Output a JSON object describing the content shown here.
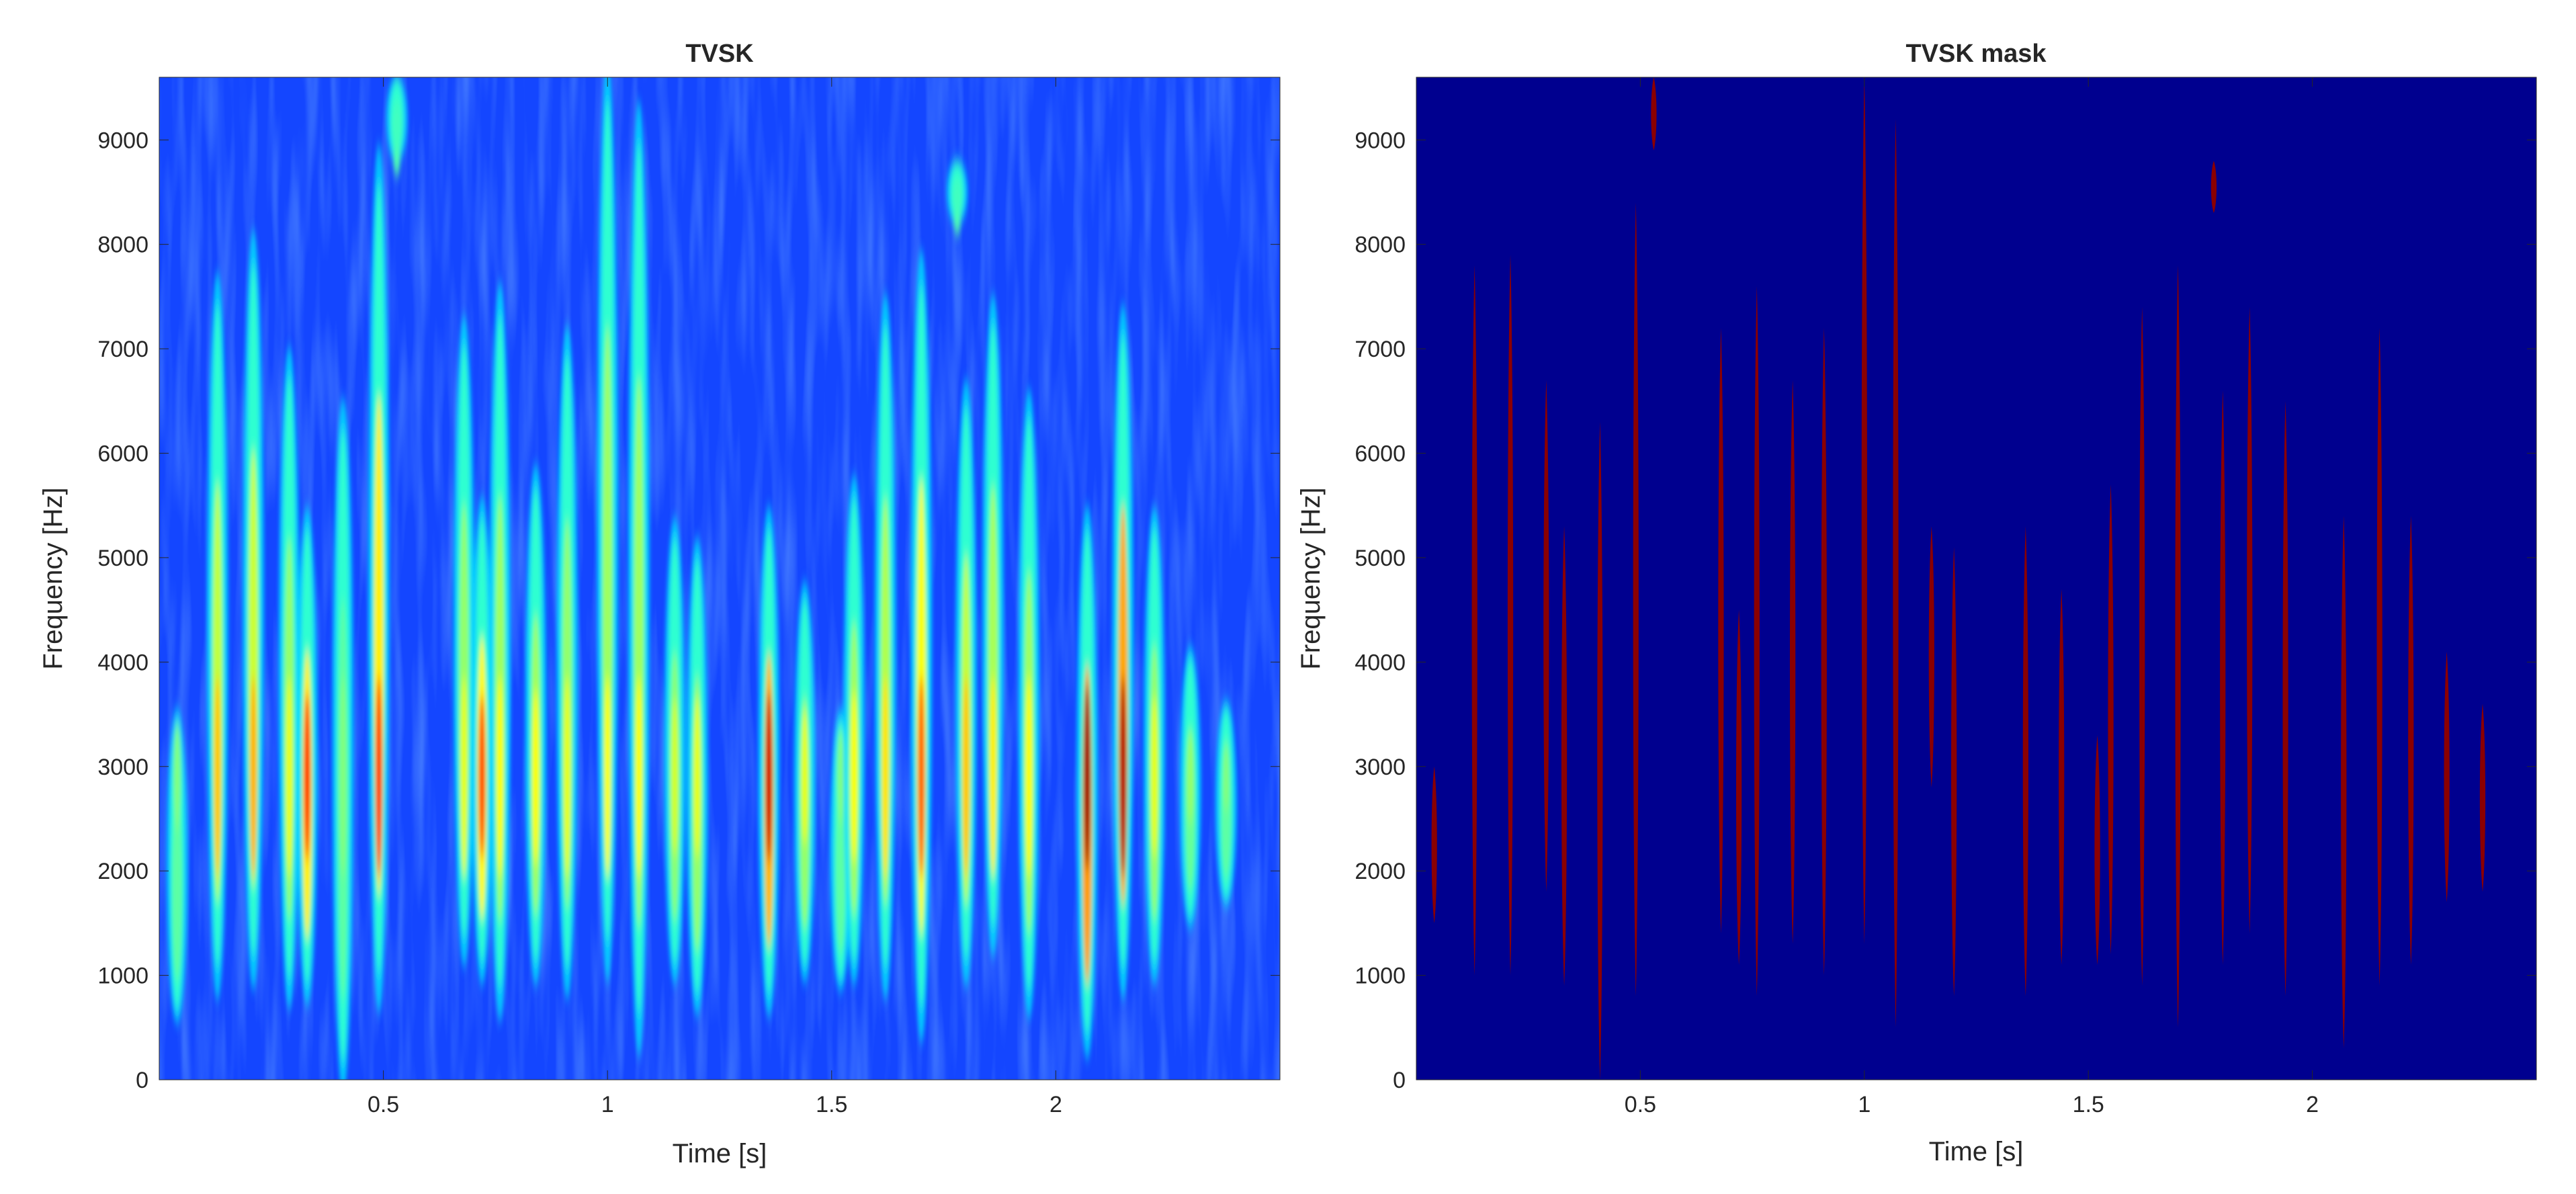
{
  "chart_data": [
    {
      "type": "heatmap",
      "title": "TVSK",
      "xlabel": "Time [s]",
      "ylabel": "Frequency [Hz]",
      "xlim": [
        0.0,
        2.5
      ],
      "ylim": [
        0,
        9600
      ],
      "xticks": [
        0.5,
        1,
        1.5,
        2
      ],
      "xtick_labels": [
        "0.5",
        "1",
        "1.5",
        "2"
      ],
      "yticks": [
        0,
        1000,
        2000,
        3000,
        4000,
        5000,
        6000,
        7000,
        8000,
        9000
      ],
      "ytick_labels": [
        "0",
        "1000",
        "2000",
        "3000",
        "4000",
        "5000",
        "6000",
        "7000",
        "8000",
        "9000"
      ],
      "colormap": "jet",
      "background_color": "#1446ff",
      "pulses": [
        {
          "t": 0.04,
          "f_low": 600,
          "f_high": 3500,
          "peak": 0.5
        },
        {
          "t": 0.13,
          "f_low": 900,
          "f_high": 7600,
          "peak": 0.68
        },
        {
          "t": 0.21,
          "f_low": 1000,
          "f_high": 8000,
          "peak": 0.7
        },
        {
          "t": 0.29,
          "f_low": 800,
          "f_high": 6900,
          "peak": 0.6
        },
        {
          "t": 0.33,
          "f_low": 800,
          "f_high": 5400,
          "peak": 0.82
        },
        {
          "t": 0.41,
          "f_low": 0,
          "f_high": 6400,
          "peak": 0.5
        },
        {
          "t": 0.49,
          "f_low": 800,
          "f_high": 8800,
          "peak": 0.82
        },
        {
          "t": 0.53,
          "f_low": 8800,
          "f_high": 9600,
          "peak": 0.45
        },
        {
          "t": 0.68,
          "f_low": 1200,
          "f_high": 7200,
          "peak": 0.6
        },
        {
          "t": 0.72,
          "f_low": 1000,
          "f_high": 5500,
          "peak": 0.8
        },
        {
          "t": 0.76,
          "f_low": 700,
          "f_high": 7500,
          "peak": 0.62
        },
        {
          "t": 0.84,
          "f_low": 1000,
          "f_high": 5800,
          "peak": 0.62
        },
        {
          "t": 0.91,
          "f_low": 900,
          "f_high": 7100,
          "peak": 0.6
        },
        {
          "t": 1.0,
          "f_low": 1100,
          "f_high": 9600,
          "peak": 0.62
        },
        {
          "t": 1.07,
          "f_low": 400,
          "f_high": 9200,
          "peak": 0.62
        },
        {
          "t": 1.15,
          "f_low": 1000,
          "f_high": 5300,
          "peak": 0.58
        },
        {
          "t": 1.2,
          "f_low": 700,
          "f_high": 5100,
          "peak": 0.6
        },
        {
          "t": 1.36,
          "f_low": 700,
          "f_high": 5400,
          "peak": 0.92
        },
        {
          "t": 1.44,
          "f_low": 1000,
          "f_high": 4700,
          "peak": 0.6
        },
        {
          "t": 1.52,
          "f_low": 900,
          "f_high": 3500,
          "peak": 0.5
        },
        {
          "t": 1.55,
          "f_low": 1000,
          "f_high": 5700,
          "peak": 0.62
        },
        {
          "t": 1.62,
          "f_low": 900,
          "f_high": 7400,
          "peak": 0.65
        },
        {
          "t": 1.7,
          "f_low": 500,
          "f_high": 7800,
          "peak": 0.78
        },
        {
          "t": 1.78,
          "f_low": 8200,
          "f_high": 8800,
          "peak": 0.45
        },
        {
          "t": 1.8,
          "f_low": 1000,
          "f_high": 6600,
          "peak": 0.68
        },
        {
          "t": 1.86,
          "f_low": 1300,
          "f_high": 7400,
          "peak": 0.64
        },
        {
          "t": 1.94,
          "f_low": 700,
          "f_high": 6500,
          "peak": 0.62
        },
        {
          "t": 2.07,
          "f_low": 300,
          "f_high": 5400,
          "peak": 0.97
        },
        {
          "t": 2.15,
          "f_low": 900,
          "f_high": 7300,
          "peak": 0.95
        },
        {
          "t": 2.22,
          "f_low": 1000,
          "f_high": 5400,
          "peak": 0.6
        },
        {
          "t": 2.3,
          "f_low": 1500,
          "f_high": 4100,
          "peak": 0.52
        },
        {
          "t": 2.38,
          "f_low": 1700,
          "f_high": 3600,
          "peak": 0.5
        }
      ]
    },
    {
      "type": "heatmap",
      "title": "TVSK mask",
      "xlabel": "Time [s]",
      "ylabel": "Frequency [Hz]",
      "xlim": [
        0.0,
        2.5
      ],
      "ylim": [
        0,
        9600
      ],
      "xticks": [
        0.5,
        1,
        1.5,
        2
      ],
      "xtick_labels": [
        "0.5",
        "1",
        "1.5",
        "2"
      ],
      "yticks": [
        0,
        1000,
        2000,
        3000,
        4000,
        5000,
        6000,
        7000,
        8000,
        9000
      ],
      "ytick_labels": [
        "0",
        "1000",
        "2000",
        "3000",
        "4000",
        "5000",
        "6000",
        "7000",
        "8000",
        "9000"
      ],
      "background_color": "#00008f",
      "mask_color": "#8b0000",
      "mask_regions": [
        {
          "t": 0.04,
          "f_low": 1500,
          "f_high": 3000
        },
        {
          "t": 0.13,
          "f_low": 1000,
          "f_high": 7800
        },
        {
          "t": 0.21,
          "f_low": 1000,
          "f_high": 7900
        },
        {
          "t": 0.29,
          "f_low": 1800,
          "f_high": 6700
        },
        {
          "t": 0.33,
          "f_low": 900,
          "f_high": 5300
        },
        {
          "t": 0.41,
          "f_low": 0,
          "f_high": 6300
        },
        {
          "t": 0.49,
          "f_low": 800,
          "f_high": 8400
        },
        {
          "t": 0.53,
          "f_low": 8900,
          "f_high": 9600
        },
        {
          "t": 0.68,
          "f_low": 1400,
          "f_high": 7200
        },
        {
          "t": 0.72,
          "f_low": 1100,
          "f_high": 4500
        },
        {
          "t": 0.76,
          "f_low": 800,
          "f_high": 7600
        },
        {
          "t": 0.84,
          "f_low": 1300,
          "f_high": 6700
        },
        {
          "t": 0.91,
          "f_low": 1000,
          "f_high": 7200
        },
        {
          "t": 1.0,
          "f_low": 1300,
          "f_high": 9600
        },
        {
          "t": 1.07,
          "f_low": 500,
          "f_high": 9200
        },
        {
          "t": 1.15,
          "f_low": 2800,
          "f_high": 5300
        },
        {
          "t": 1.2,
          "f_low": 800,
          "f_high": 5100
        },
        {
          "t": 1.36,
          "f_low": 800,
          "f_high": 5300
        },
        {
          "t": 1.44,
          "f_low": 1100,
          "f_high": 4700
        },
        {
          "t": 1.52,
          "f_low": 1100,
          "f_high": 3300
        },
        {
          "t": 1.55,
          "f_low": 1200,
          "f_high": 5700
        },
        {
          "t": 1.62,
          "f_low": 900,
          "f_high": 7400
        },
        {
          "t": 1.7,
          "f_low": 500,
          "f_high": 7800
        },
        {
          "t": 1.78,
          "f_low": 8300,
          "f_high": 8800
        },
        {
          "t": 1.8,
          "f_low": 1100,
          "f_high": 6600
        },
        {
          "t": 1.86,
          "f_low": 1400,
          "f_high": 7400
        },
        {
          "t": 1.94,
          "f_low": 800,
          "f_high": 6500
        },
        {
          "t": 2.07,
          "f_low": 300,
          "f_high": 5400
        },
        {
          "t": 2.15,
          "f_low": 900,
          "f_high": 7200
        },
        {
          "t": 2.22,
          "f_low": 1100,
          "f_high": 5400
        },
        {
          "t": 2.3,
          "f_low": 1700,
          "f_high": 4100
        },
        {
          "t": 2.38,
          "f_low": 1800,
          "f_high": 3600
        }
      ]
    }
  ]
}
